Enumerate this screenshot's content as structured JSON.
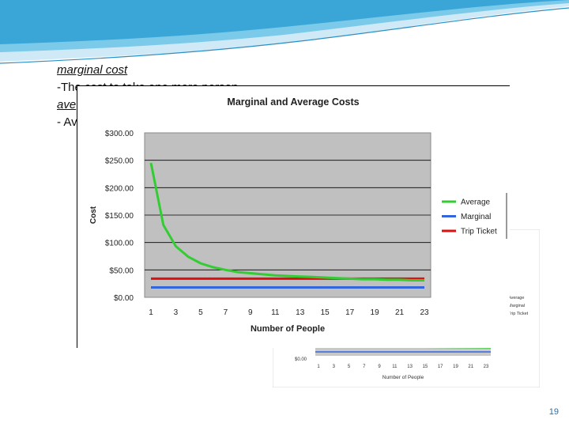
{
  "slide": {
    "term1": "marginal cost",
    "def1": "-The cost to take one more person",
    "term2": "ave",
    "def2": "- Av",
    "slide_number": "19"
  },
  "theme": {
    "wave_colors": [
      "#9fd4ec",
      "#5db7e0",
      "#2b8fc6"
    ]
  },
  "chart_data": [
    {
      "type": "line",
      "title": "Marginal and Average Costs",
      "xlabel": "Number of People",
      "ylabel": "Cost",
      "x": [
        1,
        2,
        3,
        4,
        5,
        6,
        7,
        8,
        9,
        10,
        11,
        12,
        13,
        14,
        15,
        16,
        17,
        18,
        19,
        20,
        21,
        22,
        23
      ],
      "xticks": [
        "1",
        "3",
        "5",
        "7",
        "9",
        "11",
        "13",
        "15",
        "17",
        "19",
        "21",
        "23"
      ],
      "yticks": [
        "$0.00",
        "$50.00",
        "$100.00",
        "$150.00",
        "$200.00",
        "$250.00",
        "$300.00"
      ],
      "ylim": [
        0,
        300
      ],
      "grid": true,
      "plot_background": "#c0c0c0",
      "legend_position": "right",
      "series": [
        {
          "name": "Average",
          "color": "#33cc33",
          "values": [
            245,
            132,
            93,
            74,
            62,
            55,
            50,
            46,
            44,
            42,
            40,
            39,
            38,
            37,
            36,
            35,
            34,
            33,
            33,
            32,
            32,
            31,
            31
          ]
        },
        {
          "name": "Marginal",
          "color": "#3366dd",
          "values": [
            18,
            18,
            18,
            18,
            18,
            18,
            18,
            18,
            18,
            18,
            18,
            18,
            18,
            18,
            18,
            18,
            18,
            18,
            18,
            18,
            18,
            18,
            18
          ]
        },
        {
          "name": "Trip Ticket",
          "color": "#dd1111",
          "values": [
            34,
            34,
            34,
            34,
            34,
            34,
            34,
            34,
            34,
            34,
            34,
            34,
            34,
            34,
            34,
            34,
            34,
            34,
            34,
            34,
            34,
            34,
            34
          ]
        }
      ]
    },
    {
      "type": "line",
      "xlabel": "Number of People",
      "xticks": [
        "1",
        "3",
        "5",
        "7",
        "9",
        "11",
        "13",
        "15",
        "17",
        "19",
        "21",
        "23"
      ],
      "yticks": [
        "$0.00"
      ],
      "legend_entries": [
        "Average",
        "Marginal",
        "Trip Ticket"
      ],
      "series": [
        {
          "name": "Average",
          "color": "#33cc33"
        },
        {
          "name": "Marginal",
          "color": "#3366dd"
        },
        {
          "name": "Trip Ticket",
          "color": "#dd1111"
        }
      ]
    }
  ]
}
